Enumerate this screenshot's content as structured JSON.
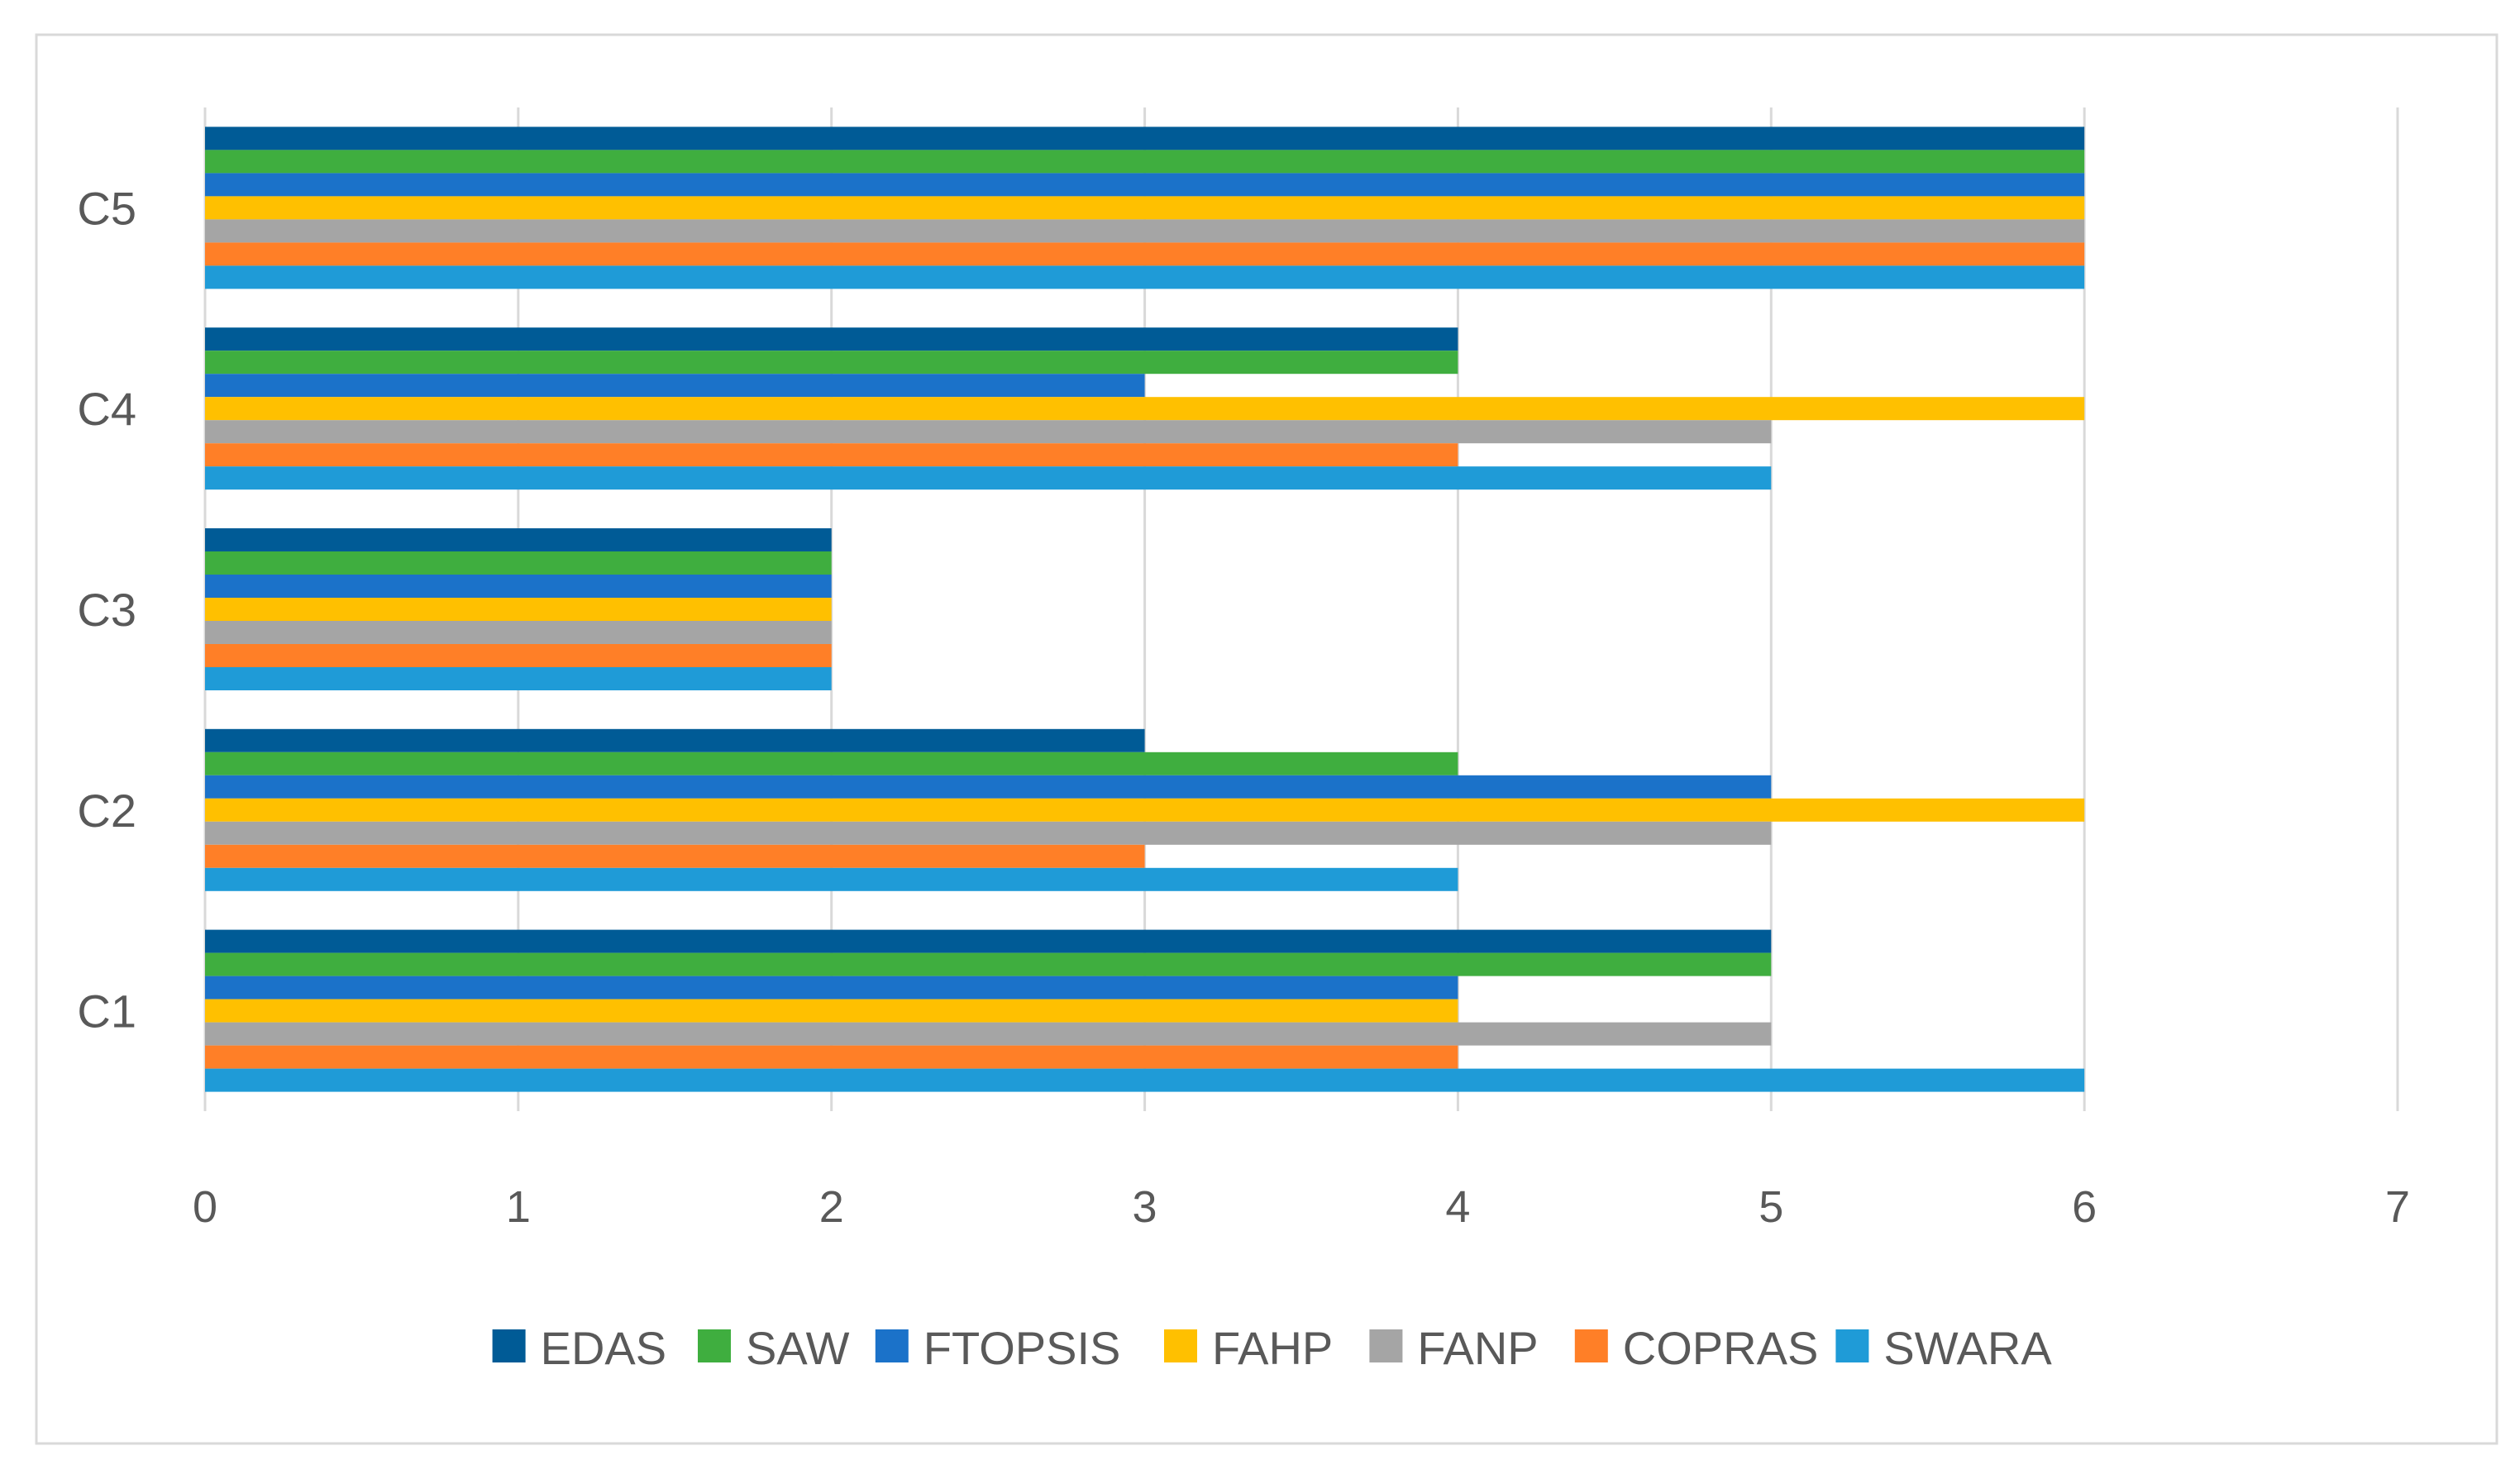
{
  "chart_data": {
    "type": "bar",
    "orientation": "horizontal",
    "title": "",
    "xlabel": "",
    "ylabel": "",
    "categories": [
      "C1",
      "C2",
      "C3",
      "C4",
      "C5"
    ],
    "xlim": [
      0,
      7
    ],
    "x_ticks": [
      "0",
      "1",
      "2",
      "3",
      "4",
      "5",
      "6",
      "7"
    ],
    "grid": "vertical",
    "legend_position": "bottom",
    "series": [
      {
        "name": "EDAS",
        "color": "#005B96",
        "values": [
          5,
          3,
          2,
          4,
          6
        ]
      },
      {
        "name": "SAW",
        "color": "#3FAE3F",
        "values": [
          5,
          4,
          2,
          4,
          6
        ]
      },
      {
        "name": "FTOPSIS",
        "color": "#1B72C9",
        "values": [
          4,
          5,
          2,
          3,
          6
        ]
      },
      {
        "name": "FAHP",
        "color": "#FFC000",
        "values": [
          4,
          6,
          2,
          6,
          6
        ]
      },
      {
        "name": "FANP",
        "color": "#A5A5A5",
        "values": [
          5,
          5,
          2,
          5,
          6
        ]
      },
      {
        "name": "COPRAS",
        "color": "#FF7F27",
        "values": [
          4,
          3,
          2,
          4,
          6
        ]
      },
      {
        "name": "SWARA",
        "color": "#1F9BD7",
        "values": [
          6,
          4,
          2,
          5,
          6
        ]
      }
    ]
  },
  "colors": {
    "gridline": "#D9D9D9",
    "tick_text": "#595959",
    "frame": "#D9D9D9"
  }
}
